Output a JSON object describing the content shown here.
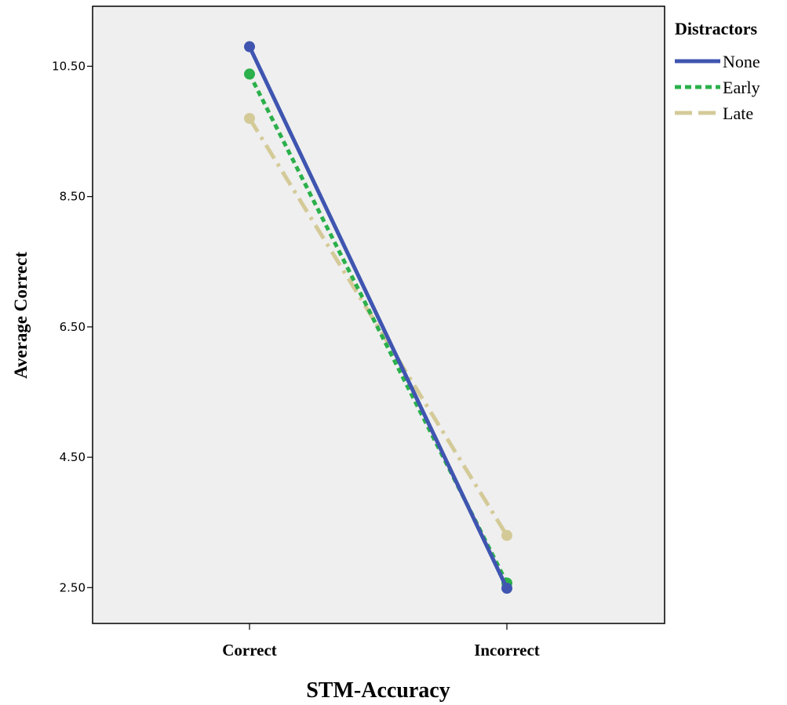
{
  "chart_data": {
    "type": "line",
    "categories": [
      "Correct",
      "Incorrect"
    ],
    "xlabel": "STM-Accuracy",
    "ylabel": "Average Correct",
    "yticks": [
      "2.50",
      "4.50",
      "6.50",
      "8.50",
      "10.50"
    ],
    "ylim": [
      1.95,
      11.42
    ],
    "grid": false,
    "legend": {
      "title": "Distractors",
      "placement": "top-right outside plot"
    },
    "plot_background": "#efefef",
    "series": [
      {
        "name": "None",
        "values": [
          10.8,
          2.49
        ],
        "color": "#3f55b0",
        "dash": "solid"
      },
      {
        "name": "Early",
        "values": [
          10.38,
          2.57
        ],
        "color": "#2bb04b",
        "dash": "dotted"
      },
      {
        "name": "Late",
        "values": [
          9.7,
          3.3
        ],
        "color": "#d4ca98",
        "dash": "dash-dot"
      }
    ]
  }
}
